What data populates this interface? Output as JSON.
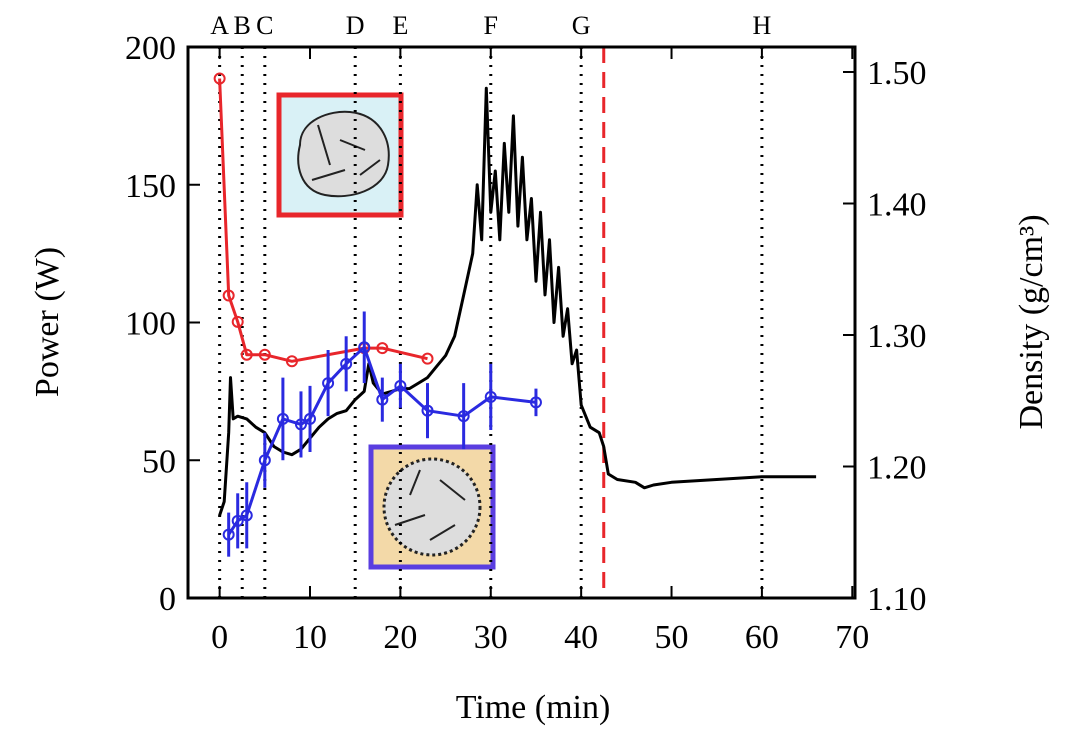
{
  "chart_data": {
    "type": "line",
    "x_label": "Time (min)",
    "y_label": "Power (W)",
    "y2_label": "Density (g/cm³)",
    "xlim": [
      -3.5,
      70.3
    ],
    "xticks": [
      0,
      10,
      20,
      30,
      40,
      50,
      60,
      70
    ],
    "ylim": [
      0,
      200
    ],
    "yticks": [
      0,
      50,
      100,
      150,
      200
    ],
    "y2lim": [
      1.1,
      1.519
    ],
    "y2ticks": [
      {
        "value": 1.1,
        "label": "1.10"
      },
      {
        "value": 1.2,
        "label": "1.20"
      },
      {
        "value": 1.3,
        "label": "1.30"
      },
      {
        "value": 1.4,
        "label": "1.40"
      },
      {
        "value": 1.5,
        "label": "1.50"
      }
    ],
    "vlines": [
      {
        "x": 0,
        "label": "A"
      },
      {
        "x": 2.5,
        "label": "B"
      },
      {
        "x": 5,
        "label": "C"
      },
      {
        "x": 15,
        "label": "D"
      },
      {
        "x": 20,
        "label": "E"
      },
      {
        "x": 30,
        "label": "F"
      },
      {
        "x": 40,
        "label": "G"
      },
      {
        "x": 60,
        "label": "H"
      }
    ],
    "dashed_vline": {
      "x": 42.5,
      "color": "#e8262b"
    },
    "series": [
      {
        "color": "#000000",
        "x": [
          0,
          0.5,
          1,
          1.2,
          1.5,
          2,
          3,
          4,
          5,
          6,
          7,
          8,
          9,
          10,
          11,
          12,
          13,
          14,
          15,
          16,
          16.5,
          17,
          18,
          19,
          20,
          21,
          22,
          23,
          24,
          25,
          26,
          27,
          28,
          28.5,
          29,
          29.5,
          30,
          30.5,
          31,
          31.5,
          32,
          32.5,
          33,
          33.5,
          34,
          34.5,
          35,
          35.5,
          36,
          36.5,
          37,
          37.5,
          38,
          38.5,
          39,
          39.5,
          40,
          41,
          42,
          42.5,
          43,
          44,
          46,
          47,
          48,
          50,
          55,
          60,
          66
        ],
        "values": [
          30,
          35,
          60,
          80,
          65,
          66,
          65,
          62,
          60,
          55,
          53,
          52,
          54,
          58,
          62,
          65,
          67,
          68,
          72,
          75,
          85,
          78,
          74,
          75,
          76,
          76,
          78,
          80,
          84,
          88,
          95,
          110,
          125,
          150,
          130,
          185,
          140,
          155,
          130,
          165,
          140,
          175,
          135,
          160,
          130,
          145,
          115,
          140,
          110,
          130,
          100,
          120,
          95,
          105,
          85,
          90,
          70,
          62,
          60,
          55,
          45,
          43,
          42,
          40,
          41,
          42,
          43,
          44,
          44
        ]
      },
      {
        "color": "#e8262b",
        "axis": "y2",
        "markers": true,
        "x": [
          0,
          1,
          2,
          3,
          5,
          8,
          16,
          18,
          23
        ],
        "values": [
          1.495,
          1.33,
          1.31,
          1.285,
          1.285,
          1.28,
          1.29,
          1.29,
          1.282
        ]
      },
      {
        "color": "#2a2ae0",
        "markers": true,
        "x": [
          1,
          2,
          3,
          5,
          7,
          9,
          10,
          12,
          14,
          16,
          18,
          20,
          23,
          27,
          30,
          35
        ],
        "values": [
          23,
          28,
          30,
          50,
          65,
          63,
          65,
          78,
          85,
          91,
          72,
          77,
          68,
          66,
          73,
          71
        ],
        "errors": [
          8,
          10,
          12,
          10,
          15,
          12,
          12,
          12,
          10,
          13,
          8,
          8,
          10,
          12,
          12,
          5
        ]
      }
    ]
  }
}
